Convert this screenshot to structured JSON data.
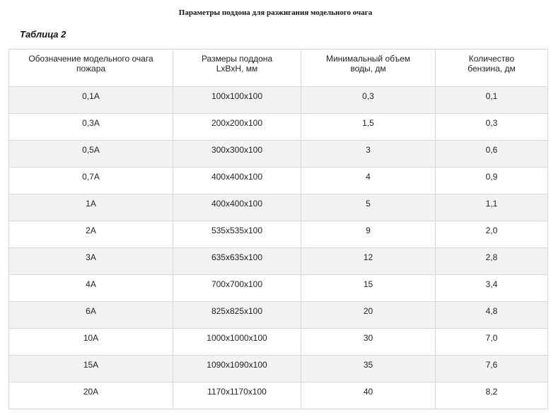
{
  "document": {
    "title": "Параметры поддона для разжигания модельного очага",
    "table_caption": "Таблица 2"
  },
  "table": {
    "headers": [
      [
        "Обозначение модельного очага",
        "пожара"
      ],
      [
        "Размеры поддона",
        "LxBxH, мм"
      ],
      [
        "Минимальный объем",
        "воды, дм"
      ],
      [
        "Количество",
        "бензина, дм"
      ]
    ],
    "rows": [
      [
        "0,1A",
        "100x100x100",
        "0,3",
        "0,1"
      ],
      [
        "0,3A",
        "200x200x100",
        "1,5",
        "0,3"
      ],
      [
        "0,5A",
        "300x300x100",
        "3",
        "0,6"
      ],
      [
        "0,7A",
        "400x400x100",
        "4",
        "0,9"
      ],
      [
        "1A",
        "400x400x100",
        "5",
        "1,1"
      ],
      [
        "2A",
        "535x535x100",
        "9",
        "2,0"
      ],
      [
        "3A",
        "635x635x100",
        "12",
        "2,8"
      ],
      [
        "4A",
        "700x700x100",
        "15",
        "3,4"
      ],
      [
        "6A",
        "825x825x100",
        "20",
        "4,8"
      ],
      [
        "10A",
        "1000x1000x100",
        "30",
        "7,0"
      ],
      [
        "15A",
        "1090x1090x100",
        "35",
        "7,6"
      ],
      [
        "20A",
        "1170x1170x100",
        "40",
        "8,2"
      ]
    ]
  }
}
